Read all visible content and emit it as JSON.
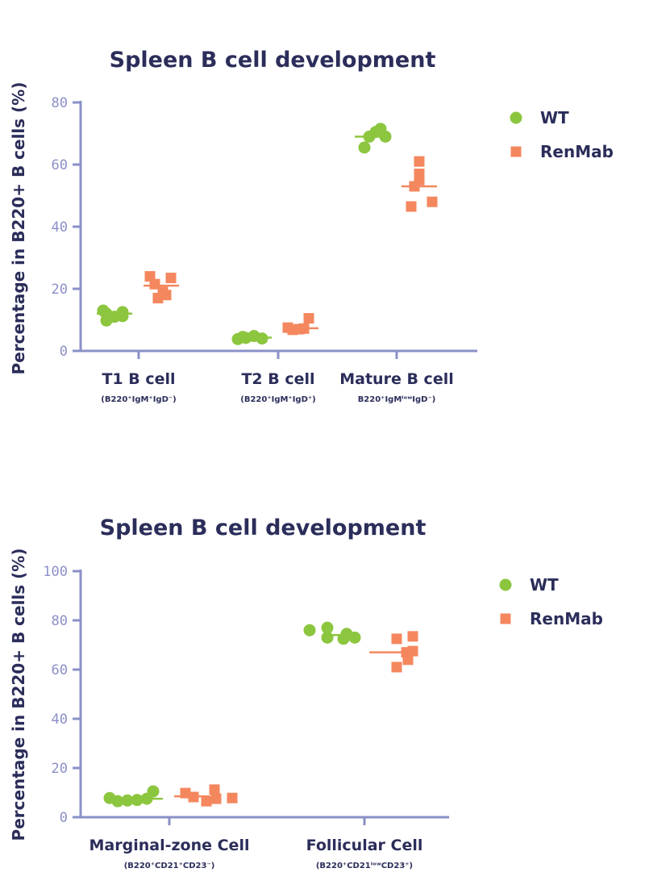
{
  "colors": {
    "WT": "#8cc63f",
    "RenMab": "#f4875e",
    "axis": "#8b90c8",
    "text": "#2b2d5a"
  },
  "chart_data": [
    {
      "type": "scatter",
      "title": "Spleen B cell development",
      "ylabel": "Percentage in B220+ B cells (%)",
      "ylim": [
        0,
        80
      ],
      "yticks": [
        "0",
        "20",
        "40",
        "60",
        "80"
      ],
      "categories": [
        "T1 B cell",
        "T2 B cell",
        "Mature B cell"
      ],
      "subcategories": [
        "(B220⁺IgM⁺IgD⁻)",
        "(B220⁺IgM⁺IgD⁺)",
        "B220⁺IgMˡᵒʷIgD⁻)"
      ],
      "legend_position": "top-right",
      "series": [
        {
          "name": "WT",
          "marker": "circle",
          "values": [
            [
              12.5,
              11.0,
              9.8,
              13.0,
              12.0,
              11.2
            ],
            [
              4.8,
              4.2,
              3.8,
              4.5,
              4.0
            ],
            [
              69.0,
              71.5,
              65.5,
              70.5,
              69.0
            ]
          ],
          "means": [
            12.0,
            4.3,
            69.0
          ]
        },
        {
          "name": "RenMab",
          "marker": "square",
          "values": [
            [
              24.0,
              21.5,
              17.0,
              19.0,
              18.0,
              23.5
            ],
            [
              7.5,
              6.8,
              10.5,
              7.0,
              7.2
            ],
            [
              61.0,
              57.0,
              55.0,
              53.0,
              48.0,
              46.5
            ]
          ],
          "means": [
            21.0,
            7.3,
            53.0
          ]
        }
      ]
    },
    {
      "type": "scatter",
      "title": "Spleen B cell development",
      "ylabel": "Percentage in B220+ B cells (%)",
      "ylim": [
        0,
        100
      ],
      "yticks": [
        "0",
        "20",
        "40",
        "60",
        "80",
        "100"
      ],
      "categories": [
        "Marginal-zone Cell",
        "Follicular Cell"
      ],
      "subcategories": [
        "(B220⁺CD21⁺CD23⁻)",
        "(B220⁺CD21ˡᵒʷCD23⁺)"
      ],
      "legend_position": "top-right",
      "series": [
        {
          "name": "WT",
          "marker": "circle",
          "values": [
            [
              7.8,
              6.5,
              6.8,
              7.0,
              7.5,
              10.5
            ],
            [
              76.0,
              73.0,
              77.0,
              72.5,
              73.0,
              74.5
            ]
          ],
          "means": [
            7.5,
            74.0
          ]
        },
        {
          "name": "RenMab",
          "marker": "square",
          "values": [
            [
              9.8,
              8.2,
              6.5,
              11.2,
              7.5,
              7.8
            ],
            [
              72.5,
              73.5,
              67.0,
              61.0,
              64.0,
              67.5
            ]
          ],
          "means": [
            8.5,
            67.0
          ]
        }
      ]
    }
  ]
}
